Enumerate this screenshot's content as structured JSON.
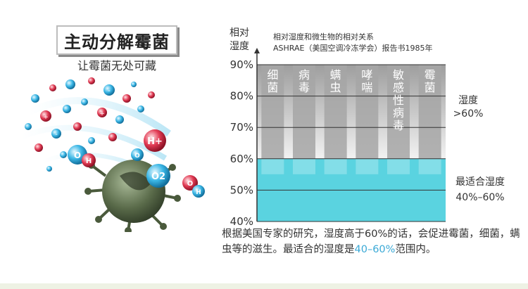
{
  "infographic": {
    "title": "主动分解霉菌",
    "subtitle": "让霉菌无处可藏",
    "molecule_labels": {
      "h_plus": "H+",
      "hydroxyl_o": "O",
      "hydroxyl_h": "H",
      "oxygen": "O2",
      "minus": "-"
    }
  },
  "caption": {
    "text_before": "根据美国专家的研究，湿度高于60%的话，会促进霉菌，细菌，螨虫等的滋生。最适合的湿度是",
    "highlight": "40–60%",
    "text_after": "范围内。",
    "highlight_color": "#3aa9d6"
  },
  "chart_data": {
    "type": "bar",
    "title": "相对湿度和微生物的相对关系",
    "subtitle": "ASHRAE（美国空调冷冻学会）报告书1985年",
    "ylabel_line1": "相对",
    "ylabel_line2": "湿度",
    "ylim": [
      40,
      90
    ],
    "ytick_labels": [
      "90%",
      "80%",
      "70%",
      "60%",
      "50%",
      "40%"
    ],
    "ytick_values": [
      90,
      80,
      70,
      60,
      50,
      40
    ],
    "categories": [
      "细菌",
      "病毒",
      "螨虫",
      "哮喘",
      "敏感性病毒",
      "霉菌"
    ],
    "series": [
      {
        "values": [
          60,
          60,
          60,
          60,
          60,
          60
        ]
      }
    ],
    "optimal_band": [
      40,
      60
    ],
    "annotations": {
      "upper_line1": "湿度",
      "upper_line2": ">60%",
      "lower_line1": "最适合湿度",
      "lower_line2": "40%–60%"
    },
    "colors": {
      "bar": "#a6a6a6",
      "optimal": "#5ad3e0",
      "band_top": "#9e9e9e",
      "band_bottom": "#f2f2f2"
    }
  }
}
